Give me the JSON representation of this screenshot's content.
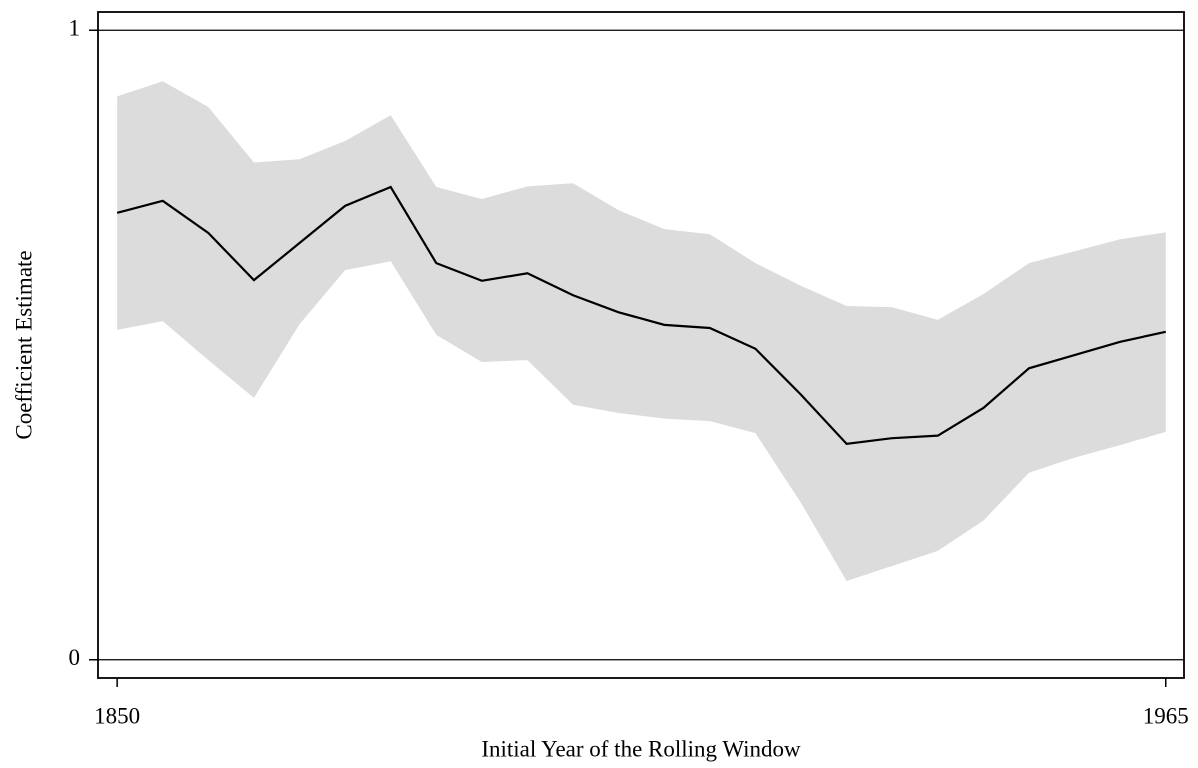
{
  "chart_data": {
    "type": "line",
    "xlabel": "Initial Year of the Rolling Window",
    "ylabel": "Coefficient Estimate",
    "x": [
      1850,
      1855,
      1860,
      1865,
      1870,
      1875,
      1880,
      1885,
      1890,
      1895,
      1900,
      1905,
      1910,
      1915,
      1920,
      1925,
      1930,
      1935,
      1940,
      1945,
      1950,
      1955,
      1960,
      1965
    ],
    "line": {
      "color": "#000000",
      "values": [
        0.71,
        0.729,
        0.678,
        0.603,
        0.662,
        0.721,
        0.751,
        0.63,
        0.602,
        0.614,
        0.579,
        0.552,
        0.532,
        0.527,
        0.494,
        0.421,
        0.343,
        0.352,
        0.356,
        0.4,
        0.463,
        0.484,
        0.505,
        0.521
      ]
    },
    "band": {
      "color": "#dcdcdc",
      "upper": [
        0.895,
        0.919,
        0.878,
        0.79,
        0.795,
        0.824,
        0.865,
        0.751,
        0.732,
        0.752,
        0.757,
        0.714,
        0.684,
        0.676,
        0.63,
        0.594,
        0.562,
        0.56,
        0.54,
        0.581,
        0.63,
        0.649,
        0.668,
        0.679
      ],
      "lower": [
        0.524,
        0.538,
        0.476,
        0.416,
        0.533,
        0.619,
        0.633,
        0.516,
        0.473,
        0.476,
        0.405,
        0.392,
        0.383,
        0.379,
        0.36,
        0.249,
        0.125,
        0.149,
        0.173,
        0.221,
        0.297,
        0.321,
        0.341,
        0.362
      ]
    },
    "xlim": [
      1847.9,
      1967.0
    ],
    "ylim": [
      -0.029,
      1.029
    ],
    "xticks": [
      1850,
      1965
    ],
    "yticks": [
      0,
      1
    ],
    "grid": true
  }
}
